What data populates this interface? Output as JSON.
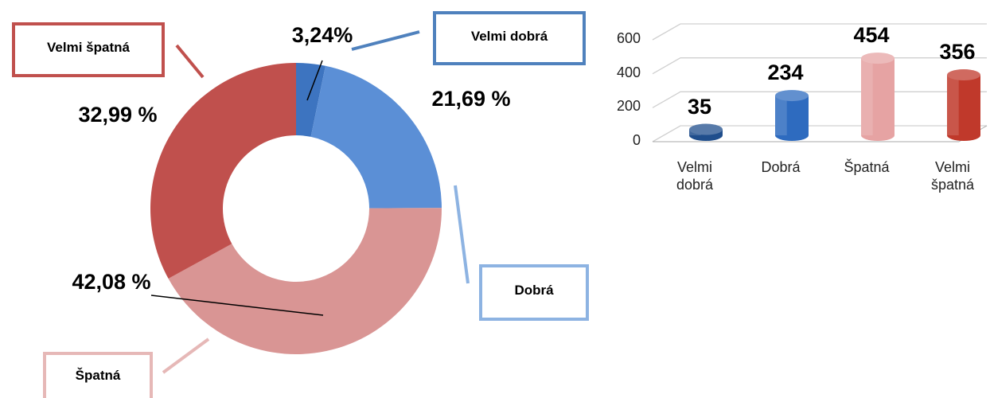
{
  "chart_data": [
    {
      "type": "donut",
      "categories": [
        "Velmi dobrá",
        "Dobrá",
        "Špatná",
        "Velmi špatná"
      ],
      "values": [
        3.24,
        21.69,
        42.08,
        32.99
      ],
      "value_labels": [
        "3,24%",
        "21,69 %",
        "42,08 %",
        "32,99 %"
      ],
      "colors": [
        "#3d74c0",
        "#5b8fd6",
        "#d99594",
        "#c0504d"
      ]
    },
    {
      "type": "bar3d",
      "categories": [
        "Velmi dobrá",
        "Dobrá",
        "Špatná",
        "Velmi špatná"
      ],
      "values": [
        35,
        234,
        454,
        356
      ],
      "colors": [
        "#1f4e8c",
        "#2e6bbf",
        "#e6a3a3",
        "#c0392b"
      ],
      "ylim": [
        0,
        600
      ],
      "yticks": [
        0,
        200,
        400,
        600
      ],
      "grid": true
    }
  ]
}
